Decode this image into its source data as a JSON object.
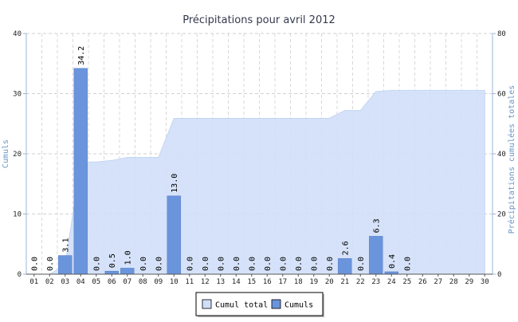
{
  "chart_data": {
    "type": "bar",
    "title": "Précipitations pour avril 2012",
    "ylabel_left": "Cumuls",
    "ylabel_right": "Précipitations cumulées totales",
    "ylim_left": [
      0,
      40
    ],
    "ylim_right": [
      0,
      80
    ],
    "yticks_left": [
      "0",
      "10",
      "20",
      "30",
      "40"
    ],
    "yticks_right": [
      "0",
      "20",
      "40",
      "60",
      "80"
    ],
    "grid": true,
    "categories": [
      "01",
      "02",
      "03",
      "04",
      "05",
      "06",
      "07",
      "08",
      "09",
      "10",
      "11",
      "12",
      "13",
      "14",
      "15",
      "16",
      "17",
      "18",
      "19",
      "20",
      "21",
      "22",
      "23",
      "24",
      "25",
      "26",
      "27",
      "28",
      "29",
      "30"
    ],
    "series": [
      {
        "name": "Cumuls",
        "type": "bar",
        "axis": "left",
        "color": "#6a94dc",
        "values": [
          0.0,
          0.0,
          3.1,
          34.2,
          0.0,
          0.5,
          1.0,
          0.0,
          0.0,
          13.0,
          0.0,
          0.0,
          0.0,
          0.0,
          0.0,
          0.0,
          0.0,
          0.0,
          0.0,
          0.0,
          2.6,
          0.0,
          6.3,
          0.4,
          0.0,
          null,
          null,
          null,
          null,
          null
        ],
        "labels": [
          "0.0",
          "0.0",
          "3.1",
          "34.2",
          "0.0",
          "0.5",
          "1.0",
          "0.0",
          "0.0",
          "13.0",
          "0.0",
          "0.0",
          "0.0",
          "0.0",
          "0.0",
          "0.0",
          "0.0",
          "0.0",
          "0.0",
          "0.0",
          "2.6",
          "0.0",
          "6.3",
          "0.4",
          "0.0",
          "",
          "",
          "",
          "",
          ""
        ]
      },
      {
        "name": "Cumul total",
        "type": "area",
        "axis": "right",
        "color": "#d0dff8",
        "values": [
          0.0,
          0.0,
          3.1,
          37.3,
          37.3,
          37.8,
          38.8,
          38.8,
          38.8,
          51.8,
          51.8,
          51.8,
          51.8,
          51.8,
          51.8,
          51.8,
          51.8,
          51.8,
          51.8,
          51.8,
          54.4,
          54.4,
          60.7,
          61.1,
          61.1,
          61.1,
          61.1,
          61.1,
          61.1,
          61.1
        ]
      }
    ],
    "legend": {
      "position": "bottom-center",
      "items": [
        {
          "label": "Cumul total",
          "color": "#d0dff8"
        },
        {
          "label": "Cumuls",
          "color": "#6a94dc"
        }
      ]
    }
  }
}
